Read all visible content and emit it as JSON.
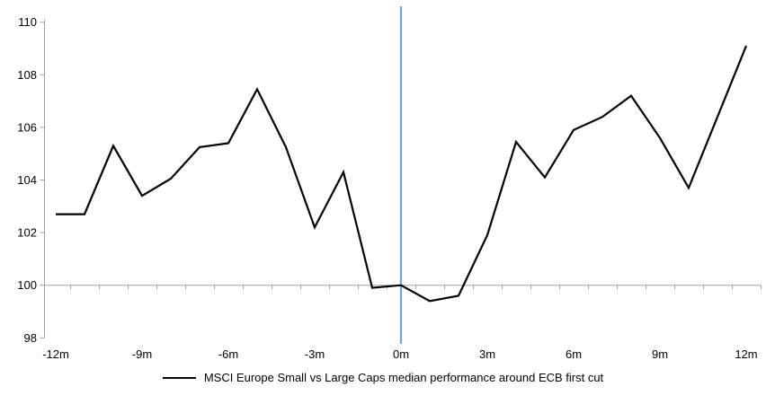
{
  "chart_data": {
    "type": "line",
    "series_name": "MSCI Europe Small vs Large Caps median performance around ECB first cut",
    "x_months": [
      -12,
      -11,
      -10,
      -9,
      -8,
      -7,
      -6,
      -5,
      -4,
      -3,
      -2,
      -1,
      0,
      1,
      2,
      3,
      4,
      5,
      6,
      7,
      8,
      9,
      10,
      11,
      12
    ],
    "values": [
      102.7,
      102.7,
      105.3,
      103.4,
      104.05,
      105.25,
      105.4,
      107.45,
      105.25,
      102.2,
      104.3,
      99.9,
      100.0,
      99.4,
      99.6,
      101.9,
      105.45,
      104.1,
      105.9,
      106.4,
      107.2,
      105.6,
      103.7,
      106.4,
      109.1
    ],
    "x_tick_labels": [
      "-12m",
      "-9m",
      "-6m",
      "-3m",
      "0m",
      "3m",
      "6m",
      "9m",
      "12m"
    ],
    "x_tick_label_months": [
      -12,
      -9,
      -6,
      -3,
      0,
      3,
      6,
      9,
      12
    ],
    "y_tick_labels": [
      98,
      100,
      102,
      104,
      106,
      108,
      110
    ],
    "ylim": [
      98,
      110
    ],
    "xlim": [
      -12,
      12
    ],
    "axis_baseline_value": 100,
    "event_line_at_month": 0,
    "grid": "off",
    "legend_position": "bottom-center"
  },
  "colors": {
    "series_line": "#000000",
    "event_line": "#7BA4D6",
    "axis": "#A0A0A0",
    "tick_label": "#000000",
    "background": "#FFFFFF"
  }
}
